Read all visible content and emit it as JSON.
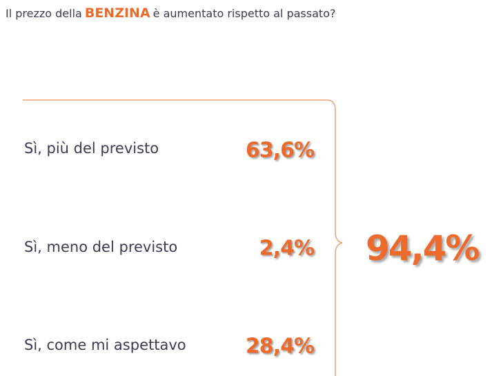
{
  "title": {
    "before": "Il prezzo della",
    "highlight": "BENZINA",
    "after": "è aumentato rispetto al passato?"
  },
  "items": [
    {
      "label": "Sì, più del previsto",
      "value": "63,6%"
    },
    {
      "label": "Sì, meno del previsto",
      "value": "2,4%"
    },
    {
      "label": "Sì, come mi aspettavo",
      "value": "28,4%"
    }
  ],
  "total": "94,4%"
}
